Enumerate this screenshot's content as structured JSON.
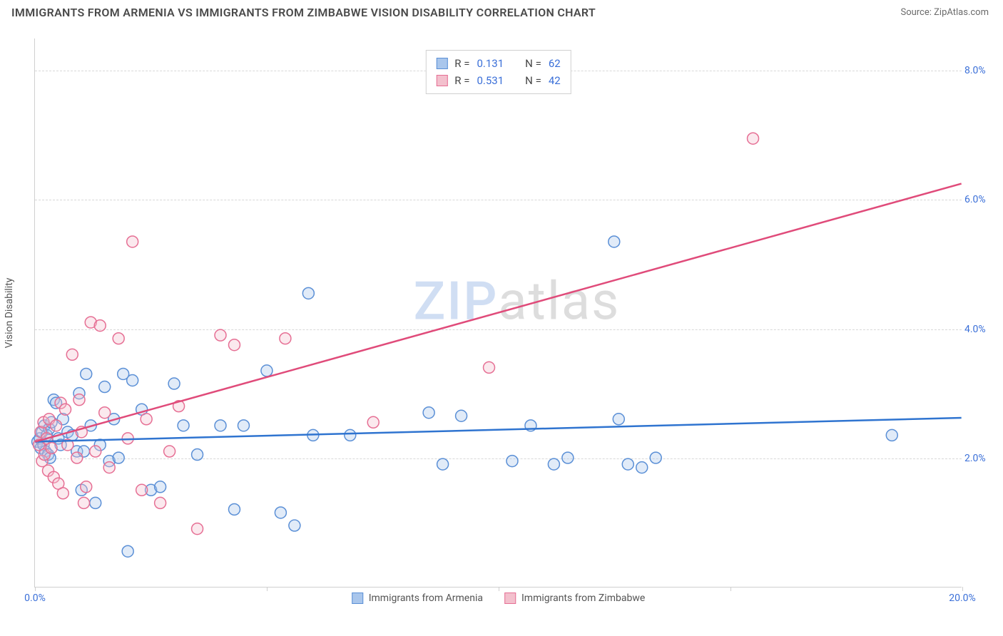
{
  "header": {
    "title": "IMMIGRANTS FROM ARMENIA VS IMMIGRANTS FROM ZIMBABWE VISION DISABILITY CORRELATION CHART",
    "source": "Source: ZipAtlas.com"
  },
  "watermark": {
    "part1": "ZIP",
    "part2": "atlas"
  },
  "chart": {
    "type": "scatter",
    "y_axis_label": "Vision Disability",
    "xlim": [
      0,
      20
    ],
    "ylim": [
      0,
      8.5
    ],
    "x_ticks": [
      0,
      5,
      10,
      15,
      20
    ],
    "x_tick_labels": [
      "0.0%",
      "",
      "",
      "",
      "20.0%"
    ],
    "y_ticks": [
      2,
      4,
      6,
      8
    ],
    "y_tick_labels": [
      "2.0%",
      "4.0%",
      "6.0%",
      "8.0%"
    ],
    "y_grid": [
      2,
      4,
      6,
      8
    ],
    "background_color": "#ffffff",
    "grid_color": "#d8d8d8",
    "axis_color": "#cfcfcf",
    "tick_label_color": "#3a6fd8",
    "marker_radius": 8,
    "marker_stroke_width": 1.5,
    "marker_fill_opacity": 0.35,
    "trend_line_width": 2.5,
    "series": [
      {
        "id": "armenia",
        "label": "Immigrants from Armenia",
        "color_fill": "#a9c6ec",
        "color_stroke": "#5a8fd6",
        "trend_color": "#2f74d0",
        "R": "0.131",
        "N": "62",
        "trend": {
          "x1": 0,
          "y1": 2.25,
          "x2": 20,
          "y2": 2.62
        },
        "points": [
          [
            0.05,
            2.25
          ],
          [
            0.1,
            2.3
          ],
          [
            0.12,
            2.15
          ],
          [
            0.15,
            2.4
          ],
          [
            0.18,
            2.2
          ],
          [
            0.2,
            2.5
          ],
          [
            0.22,
            2.1
          ],
          [
            0.25,
            2.35
          ],
          [
            0.28,
            2.05
          ],
          [
            0.3,
            2.45
          ],
          [
            0.32,
            2.0
          ],
          [
            0.35,
            2.55
          ],
          [
            0.4,
            2.9
          ],
          [
            0.45,
            2.85
          ],
          [
            0.5,
            2.3
          ],
          [
            0.55,
            2.2
          ],
          [
            0.6,
            2.6
          ],
          [
            0.7,
            2.4
          ],
          [
            0.8,
            2.35
          ],
          [
            0.9,
            2.1
          ],
          [
            1.0,
            1.5
          ],
          [
            1.1,
            3.3
          ],
          [
            1.2,
            2.5
          ],
          [
            1.3,
            1.3
          ],
          [
            1.4,
            2.2
          ],
          [
            1.5,
            3.1
          ],
          [
            1.6,
            1.95
          ],
          [
            1.7,
            2.6
          ],
          [
            1.8,
            2.0
          ],
          [
            1.9,
            3.3
          ],
          [
            2.0,
            0.55
          ],
          [
            2.1,
            3.2
          ],
          [
            2.3,
            2.75
          ],
          [
            2.5,
            1.5
          ],
          [
            2.7,
            1.55
          ],
          [
            3.0,
            3.15
          ],
          [
            3.2,
            2.5
          ],
          [
            3.5,
            2.05
          ],
          [
            4.0,
            2.5
          ],
          [
            4.3,
            1.2
          ],
          [
            4.5,
            2.5
          ],
          [
            5.0,
            3.35
          ],
          [
            5.3,
            1.15
          ],
          [
            5.6,
            0.95
          ],
          [
            5.9,
            4.55
          ],
          [
            6.0,
            2.35
          ],
          [
            6.8,
            2.35
          ],
          [
            8.5,
            2.7
          ],
          [
            8.8,
            1.9
          ],
          [
            9.2,
            2.65
          ],
          [
            10.3,
            1.95
          ],
          [
            10.7,
            2.5
          ],
          [
            11.2,
            1.9
          ],
          [
            11.5,
            2.0
          ],
          [
            12.5,
            5.35
          ],
          [
            12.6,
            2.6
          ],
          [
            12.8,
            1.9
          ],
          [
            13.1,
            1.85
          ],
          [
            13.4,
            2.0
          ],
          [
            18.5,
            2.35
          ],
          [
            1.05,
            2.1
          ],
          [
            0.95,
            3.0
          ]
        ]
      },
      {
        "id": "zimbabwe",
        "label": "Immigrants from Zimbabwe",
        "color_fill": "#f3c0cd",
        "color_stroke": "#e66f94",
        "trend_color": "#e04b7a",
        "R": "0.531",
        "N": "42",
        "trend": {
          "x1": 0,
          "y1": 2.25,
          "x2": 20,
          "y2": 6.25
        },
        "points": [
          [
            0.08,
            2.2
          ],
          [
            0.12,
            2.4
          ],
          [
            0.15,
            1.95
          ],
          [
            0.18,
            2.55
          ],
          [
            0.2,
            2.05
          ],
          [
            0.25,
            2.3
          ],
          [
            0.28,
            1.8
          ],
          [
            0.3,
            2.6
          ],
          [
            0.35,
            2.15
          ],
          [
            0.4,
            1.7
          ],
          [
            0.45,
            2.5
          ],
          [
            0.5,
            1.6
          ],
          [
            0.55,
            2.85
          ],
          [
            0.6,
            1.45
          ],
          [
            0.7,
            2.2
          ],
          [
            0.8,
            3.6
          ],
          [
            0.9,
            2.0
          ],
          [
            1.0,
            2.4
          ],
          [
            1.1,
            1.55
          ],
          [
            1.2,
            4.1
          ],
          [
            1.3,
            2.1
          ],
          [
            1.4,
            4.05
          ],
          [
            1.5,
            2.7
          ],
          [
            1.6,
            1.85
          ],
          [
            1.8,
            3.85
          ],
          [
            2.0,
            2.3
          ],
          [
            2.1,
            5.35
          ],
          [
            2.3,
            1.5
          ],
          [
            2.4,
            2.6
          ],
          [
            2.7,
            1.3
          ],
          [
            2.9,
            2.1
          ],
          [
            3.1,
            2.8
          ],
          [
            3.5,
            0.9
          ],
          [
            4.0,
            3.9
          ],
          [
            4.3,
            3.75
          ],
          [
            5.4,
            3.85
          ],
          [
            7.3,
            2.55
          ],
          [
            9.8,
            3.4
          ],
          [
            15.5,
            6.95
          ],
          [
            0.65,
            2.75
          ],
          [
            1.05,
            1.3
          ],
          [
            0.95,
            2.9
          ]
        ]
      }
    ]
  },
  "stats_legend": {
    "border_color": "#d0d0d0",
    "r_label": "R =",
    "n_label": "N ="
  },
  "bottom_legend_font_size": 14
}
